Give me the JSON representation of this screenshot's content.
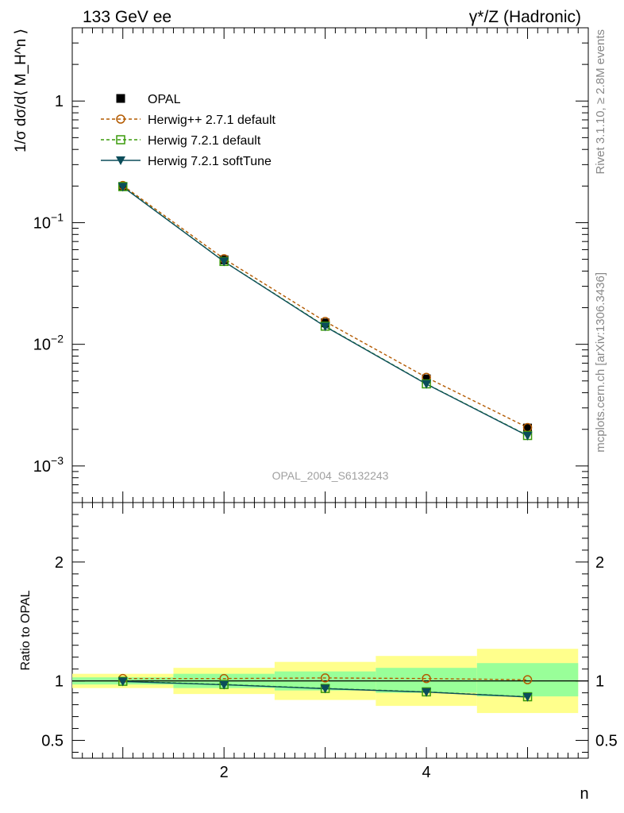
{
  "header": {
    "left_title": "133 GeV ee",
    "right_title": "γ*/Z (Hadronic)"
  },
  "side_labels": {
    "rivet": "Rivet 3.1.10, ≥ 2.8M events",
    "mcplots": "mcplots.cern.ch [arXiv:1306.3436]"
  },
  "watermark": "OPAL_2004_S6132243",
  "colors": {
    "opal": "#000000",
    "herwigpp": "#b35a00",
    "herwig_default": "#3a9a0a",
    "herwig_soft": "#0b4d5a",
    "band_inner": "#99ff99",
    "band_outer": "#ffff8c",
    "watermark": "#a0a0a0"
  },
  "chart_data": [
    {
      "type": "line",
      "name": "main",
      "ylabel": "1/σ dσ/d⟨ M_H^n ⟩",
      "yscale": "log",
      "xlim": [
        0.5,
        5.6
      ],
      "ylim": [
        0.0005,
        4
      ],
      "ytick_labels": [
        "10^-3",
        "10^-2",
        "10^-1",
        "1"
      ],
      "legend_position": "top-left",
      "x": [
        1,
        2,
        3,
        4,
        5
      ],
      "series": [
        {
          "name": "OPAL",
          "key": "opal",
          "marker": "square-filled",
          "values": [
            0.198,
            0.0495,
            0.015,
            0.0052,
            0.00205
          ]
        },
        {
          "name": "Herwig++ 2.7.1 default",
          "key": "herwigpp",
          "marker": "circle-open",
          "dash": true,
          "values": [
            0.202,
            0.0505,
            0.0154,
            0.00535,
            0.00207
          ]
        },
        {
          "name": "Herwig 7.2.1 default",
          "key": "herwig_default",
          "marker": "square-open",
          "dash": true,
          "values": [
            0.198,
            0.048,
            0.0141,
            0.00473,
            0.00178
          ]
        },
        {
          "name": "Herwig 7.2.1 softTune",
          "key": "herwig_soft",
          "marker": "triangle-down",
          "values": [
            0.197,
            0.0479,
            0.014,
            0.00471,
            0.00177
          ]
        }
      ]
    },
    {
      "type": "line",
      "name": "ratio",
      "ylabel": "Ratio to OPAL",
      "xlabel": "n",
      "xlim": [
        0.5,
        5.6
      ],
      "ylim": [
        0.35,
        2.5
      ],
      "xtick_labels": [
        "2",
        "4"
      ],
      "ytick_labels": [
        "0.5",
        "1",
        "2"
      ],
      "x": [
        1,
        2,
        3,
        4,
        5
      ],
      "bands": {
        "bins": [
          [
            0.5,
            1.5
          ],
          [
            1.5,
            2.5
          ],
          [
            2.5,
            3.5
          ],
          [
            3.5,
            4.5
          ],
          [
            4.5,
            5.5
          ]
        ],
        "inner": [
          [
            0.97,
            1.03
          ],
          [
            0.94,
            1.06
          ],
          [
            0.92,
            1.08
          ],
          [
            0.9,
            1.11
          ],
          [
            0.87,
            1.15
          ]
        ],
        "outer": [
          [
            0.94,
            1.06
          ],
          [
            0.89,
            1.11
          ],
          [
            0.84,
            1.16
          ],
          [
            0.79,
            1.21
          ],
          [
            0.73,
            1.27
          ]
        ]
      },
      "series": [
        {
          "name": "Herwig++ 2.7.1 default",
          "key": "herwigpp",
          "marker": "circle-open",
          "dash": true,
          "values": [
            1.02,
            1.02,
            1.025,
            1.02,
            1.01
          ]
        },
        {
          "name": "Herwig 7.2.1 default",
          "key": "herwig_default",
          "marker": "square-open",
          "dash": true,
          "values": [
            0.997,
            0.97,
            0.937,
            0.908,
            0.867
          ]
        },
        {
          "name": "Herwig 7.2.1 softTune",
          "key": "herwig_soft",
          "marker": "triangle-down",
          "values": [
            0.995,
            0.968,
            0.935,
            0.906,
            0.865
          ]
        }
      ]
    }
  ]
}
